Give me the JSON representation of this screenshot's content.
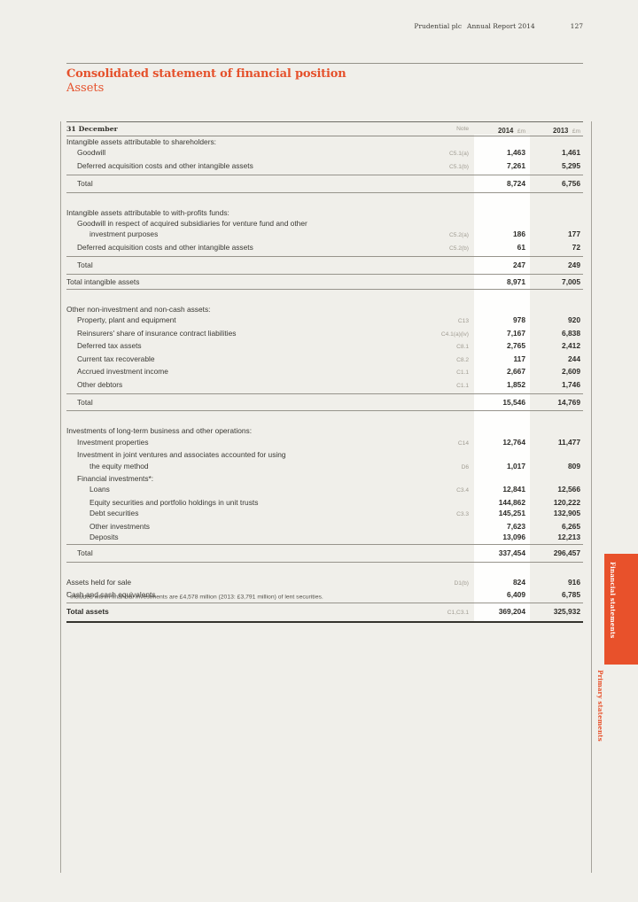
{
  "page_header": {
    "brand": "Prudential plc",
    "report": "Annual Report 2014",
    "page_number": "127"
  },
  "title": {
    "main": "Consolidated statement of financial position",
    "sub": "Assets"
  },
  "colors": {
    "accent_orange": "#e5512c",
    "page_background": "#f0efea",
    "highlight_band": "#fefefd",
    "text": "#3a3934",
    "note_gray": "#a09c92",
    "rule_gray": "#97948c"
  },
  "table": {
    "header": {
      "row_label": "31 December",
      "note_label": "Note",
      "col_2014": {
        "year": "2014",
        "unit": "£m"
      },
      "col_2013": {
        "year": "2013",
        "unit": "£m"
      }
    },
    "rows": [
      {
        "t": "label",
        "label": "Intangible assets attributable to shareholders:"
      },
      {
        "t": "item",
        "ind": 1,
        "label": "Goodwill",
        "note": "C5.1(a)",
        "v14": "1,463",
        "v13": "1,461"
      },
      {
        "t": "item",
        "ind": 1,
        "label": "Deferred acquisition costs and other intangible assets",
        "note": "C5.1(b)",
        "v14": "7,261",
        "v13": "5,295"
      },
      {
        "t": "total",
        "ind": 1,
        "label": "Total",
        "v14": "8,724",
        "v13": "6,756"
      },
      {
        "t": "gap"
      },
      {
        "t": "label",
        "label": "Intangible assets attributable to with-profits funds:"
      },
      {
        "t": "item",
        "ind": 1,
        "label": "Goodwill in respect of acquired subsidiaries for venture fund and other"
      },
      {
        "t": "item",
        "ind": 2,
        "label": "investment purposes",
        "note": "C5.2(a)",
        "v14": "186",
        "v13": "177"
      },
      {
        "t": "item",
        "ind": 1,
        "label": "Deferred acquisition costs and other intangible assets",
        "note": "C5.2(b)",
        "v14": "61",
        "v13": "72"
      },
      {
        "t": "total",
        "ind": 1,
        "label": "Total",
        "v14": "247",
        "v13": "249"
      },
      {
        "t": "totalflush",
        "ind": 0,
        "label": "Total intangible assets",
        "v14": "8,971",
        "v13": "7,005"
      },
      {
        "t": "gap"
      },
      {
        "t": "label",
        "label": "Other non-investment and non-cash assets:"
      },
      {
        "t": "item",
        "ind": 1,
        "label": "Property, plant and equipment",
        "note": "C13",
        "v14": "978",
        "v13": "920"
      },
      {
        "t": "item",
        "ind": 1,
        "label": "Reinsurers' share of insurance contract liabilities",
        "note": "C4.1(a)(iv)",
        "v14": "7,167",
        "v13": "6,838"
      },
      {
        "t": "item",
        "ind": 1,
        "label": "Deferred tax assets",
        "note": "C8.1",
        "v14": "2,765",
        "v13": "2,412"
      },
      {
        "t": "item",
        "ind": 1,
        "label": "Current tax recoverable",
        "note": "C8.2",
        "v14": "117",
        "v13": "244"
      },
      {
        "t": "item",
        "ind": 1,
        "label": "Accrued investment income",
        "note": "C1.1",
        "v14": "2,667",
        "v13": "2,609"
      },
      {
        "t": "item",
        "ind": 1,
        "label": "Other debtors",
        "note": "C1.1",
        "v14": "1,852",
        "v13": "1,746"
      },
      {
        "t": "total",
        "ind": 1,
        "label": "Total",
        "v14": "15,546",
        "v13": "14,769"
      },
      {
        "t": "gap"
      },
      {
        "t": "label",
        "label": "Investments of long-term business and other operations:"
      },
      {
        "t": "item",
        "ind": 1,
        "label": "Investment properties",
        "note": "C14",
        "v14": "12,764",
        "v13": "11,477"
      },
      {
        "t": "item",
        "ind": 1,
        "label": "Investment in joint ventures and associates accounted for using"
      },
      {
        "t": "item",
        "ind": 2,
        "label": "the equity method",
        "note": "D6",
        "v14": "1,017",
        "v13": "809"
      },
      {
        "t": "item",
        "ind": 1,
        "label": "Financial investments*:"
      },
      {
        "t": "item",
        "ind": 2,
        "label": "Loans",
        "note": "C3.4",
        "v14": "12,841",
        "v13": "12,566"
      },
      {
        "t": "item",
        "ind": 2,
        "label": "Equity securities and portfolio holdings in unit trusts",
        "v14": "144,862",
        "v13": "120,222"
      },
      {
        "t": "item",
        "ind": 2,
        "label": "Debt securities",
        "note": "C3.3",
        "v14": "145,251",
        "v13": "132,905"
      },
      {
        "t": "item",
        "ind": 2,
        "label": "Other investments",
        "v14": "7,623",
        "v13": "6,265"
      },
      {
        "t": "item",
        "ind": 2,
        "label": "Deposits",
        "v14": "13,096",
        "v13": "12,213"
      },
      {
        "t": "total",
        "ind": 1,
        "label": "Total",
        "v14": "337,454",
        "v13": "296,457"
      },
      {
        "t": "gap"
      },
      {
        "t": "item",
        "ind": 0,
        "label": "Assets held for sale",
        "note": "D1(b)",
        "v14": "824",
        "v13": "916"
      },
      {
        "t": "item",
        "ind": 0,
        "label": "Cash and cash equivalents",
        "v14": "6,409",
        "v13": "6,785"
      },
      {
        "t": "grand",
        "ind": 0,
        "label": "Total assets",
        "note": "C1,C3.1",
        "v14": "369,204",
        "v13": "325,932"
      }
    ]
  },
  "footnote": {
    "marker": "*",
    "text": "Included within financial investments are £4,578 million (2013: £3,791 million) of lent securities."
  },
  "side_tabs": {
    "active": "Financial statements",
    "secondary": "Primary statements"
  }
}
